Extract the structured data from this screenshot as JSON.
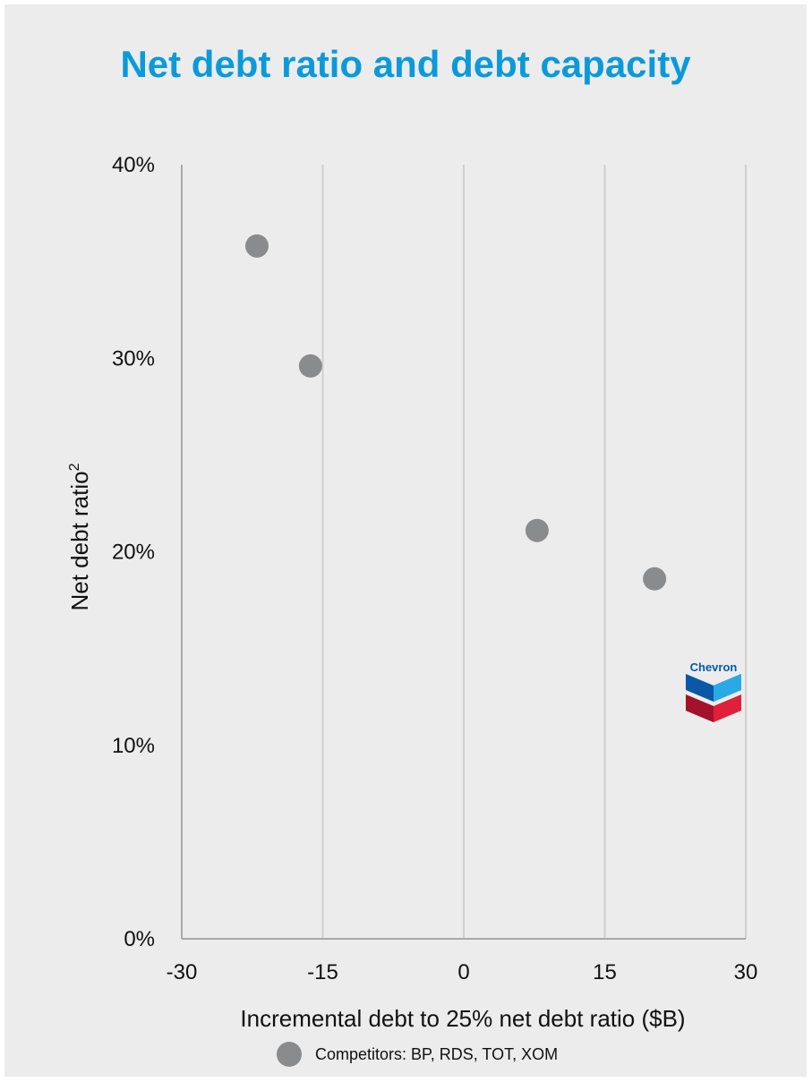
{
  "chart_data": {
    "type": "scatter",
    "title": "Net debt ratio and debt capacity",
    "xlabel": "Incremental debt to 25% net debt ratio ($B)",
    "ylabel": "Net debt ratio",
    "ylabel_superscript": "2",
    "xlim": [
      -30,
      30
    ],
    "ylim": [
      0,
      40
    ],
    "x_ticks": [
      {
        "value": -30,
        "label": "-30"
      },
      {
        "value": -15,
        "label": "-15"
      },
      {
        "value": 0,
        "label": "0"
      },
      {
        "value": 15,
        "label": "15"
      },
      {
        "value": 30,
        "label": "30"
      }
    ],
    "y_ticks": [
      {
        "value": 0,
        "label": "0%"
      },
      {
        "value": 10,
        "label": "10%"
      },
      {
        "value": 20,
        "label": "20%"
      },
      {
        "value": 30,
        "label": "30%"
      },
      {
        "value": 40,
        "label": "40%"
      }
    ],
    "grid": "vertical",
    "series": [
      {
        "name": "Competitors: BP, RDS, TOT, XOM",
        "color": "#8a8b8d",
        "points": [
          {
            "x": -22,
            "y": 35.8
          },
          {
            "x": -16.3,
            "y": 29.6
          },
          {
            "x": 7.8,
            "y": 21.1
          },
          {
            "x": 20.3,
            "y": 18.6
          }
        ]
      }
    ],
    "highlight": {
      "label": "Chevron",
      "x": 26.7,
      "y": 13.2,
      "icon": "chevron-logo-icon"
    },
    "legend_position": "bottom"
  },
  "colors": {
    "title": "#0b9ad9",
    "background": "#ececec",
    "gridline": "#cfcfcf",
    "axis": "#a9a9a9",
    "marker": "#8a8b8d",
    "logo_blue": "#0a58a6",
    "logo_light_blue": "#29a9e6",
    "logo_red": "#e0203b",
    "logo_dark_red": "#a3122a"
  }
}
